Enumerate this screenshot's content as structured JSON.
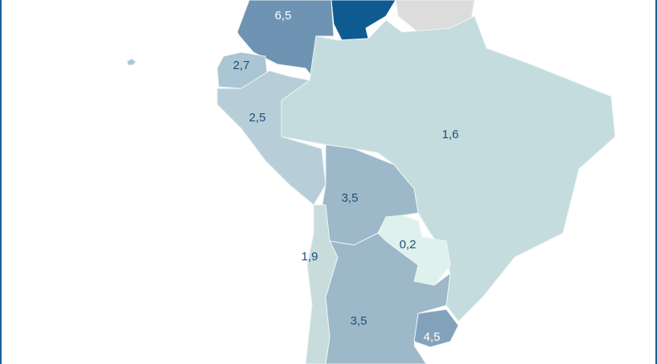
{
  "map": {
    "regions": [
      {
        "label": "6,5",
        "color": "#6f93b3"
      },
      {
        "color": "#0e5b92"
      },
      {
        "color": "#dcdcdc"
      },
      {
        "label": "2,7",
        "color": "#aac5d3"
      },
      {
        "label": "2,5",
        "color": "#b7ced8"
      },
      {
        "label": "1,6",
        "color": "#c4dcdd"
      },
      {
        "label": "3,5",
        "color": "#9db8c8"
      },
      {
        "label": "0,2",
        "color": "#dff1ec"
      },
      {
        "label": "1,9",
        "color": "#c8dcdc"
      },
      {
        "label": "3,5",
        "color": "#9db8c8"
      },
      {
        "label": "4,5",
        "color": "#82a2bc"
      }
    ]
  }
}
